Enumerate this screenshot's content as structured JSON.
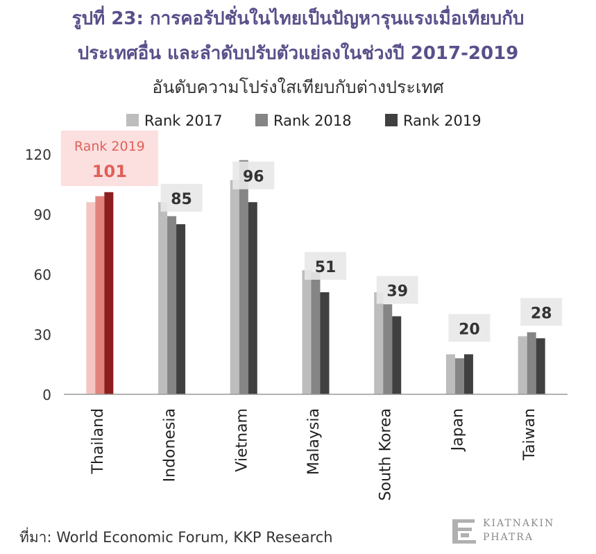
{
  "figure": {
    "title_line1": "รูปที่ 23: การคอรัปชั่นในไทยเป็นปัญหารุนแรงเมื่อเทียบกับ",
    "title_line2": "ประเทศอื่น และลำดับปรับตัวแย่ลงในช่วงปี 2017-2019",
    "subtitle": "อันดับความโปร่งใสเทียบกับต่างประเทศ",
    "source": "ที่มา: World Economic Forum, KKP Research",
    "logo_line1": "KIATNAKIN",
    "logo_line2": "PHATRA"
  },
  "chart_data": {
    "type": "bar",
    "categories": [
      "Thailand",
      "Indonesia",
      "Vietnam",
      "Malaysia",
      "South Korea",
      "Japan",
      "Taiwan"
    ],
    "series": [
      {
        "name": "Rank 2017",
        "values": [
          96,
          96,
          107,
          62,
          51,
          20,
          29
        ]
      },
      {
        "name": "Rank 2018",
        "values": [
          99,
          89,
          117,
          61,
          45,
          18,
          31
        ]
      },
      {
        "name": "Rank 2019",
        "values": [
          101,
          85,
          96,
          51,
          39,
          20,
          28
        ]
      }
    ],
    "data_labels": [
      "",
      "85",
      "96",
      "51",
      "39",
      "20",
      "28"
    ],
    "ylim": [
      0,
      120
    ],
    "yticks": [
      0,
      30,
      60,
      90,
      120
    ],
    "highlight": {
      "category": "Thailand",
      "label": "Rank 2019",
      "value": "101"
    },
    "legend_position": "top",
    "grid": false,
    "colors": {
      "series": [
        "#bdbdbd",
        "#858585",
        "#404040"
      ],
      "highlight": [
        "#f4c6c3",
        "#e3837d",
        "#8c1e1e"
      ],
      "highlight_box": "#fbdedd",
      "highlight_text": "#e0605a",
      "label_box": "#e8e8e8",
      "label_text": "#333333",
      "axis": "#999999",
      "title": "#5a4f8a"
    }
  }
}
